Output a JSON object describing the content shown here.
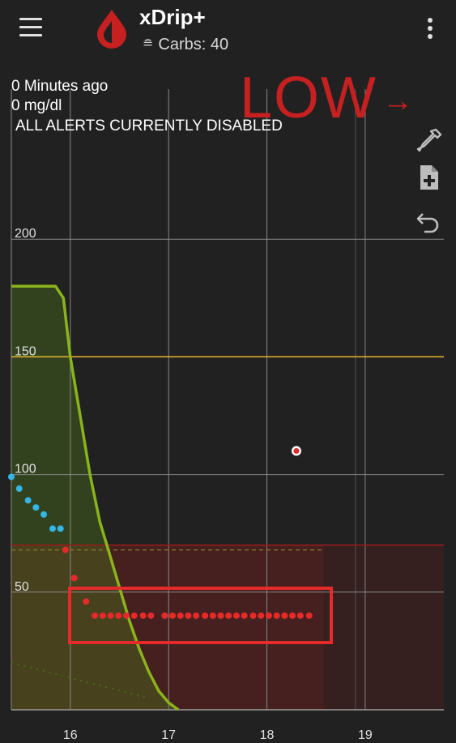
{
  "app": {
    "title": "xDrip+",
    "subtitle_icon": "scale-icon",
    "subtitle": "Carbs: 40"
  },
  "status": {
    "time_ago": "0 Minutes ago",
    "glucose": "0 mg/dl",
    "alerts": "ALL ALERTS CURRENTLY DISABLED",
    "trend_label": "LOW",
    "trend_arrow": "→"
  },
  "colors": {
    "background": "#212121",
    "low_red": "#c62020",
    "high_line": "#e8b830",
    "prediction_green": "#8ab41c",
    "reading_blue": "#33b5e5",
    "reading_red": "#e52a2a",
    "highlight_box": "#e52a2a"
  },
  "tools": [
    {
      "name": "eyedropper-icon"
    },
    {
      "name": "note-add-icon"
    },
    {
      "name": "undo-icon"
    }
  ],
  "chart_data": {
    "type": "scatter",
    "title": "",
    "xlabel": "",
    "ylabel": "",
    "x_ticks": [
      "16",
      "17",
      "18",
      "19"
    ],
    "y_ticks": [
      "50",
      "100",
      "150",
      "200"
    ],
    "xlim": [
      15.4,
      19.8
    ],
    "ylim": [
      0,
      250
    ],
    "high_threshold": 150,
    "low_threshold": 70,
    "grid": true,
    "series": [
      {
        "kind": "readings-blue",
        "points": [
          [
            15.4,
            99
          ],
          [
            15.48,
            94
          ],
          [
            15.57,
            89
          ],
          [
            15.65,
            86
          ],
          [
            15.73,
            83
          ],
          [
            15.82,
            77
          ],
          [
            15.9,
            77
          ]
        ]
      },
      {
        "kind": "readings-red",
        "points": [
          [
            15.95,
            68
          ],
          [
            16.04,
            56
          ],
          [
            16.16,
            46
          ],
          [
            16.25,
            40
          ],
          [
            16.33,
            40
          ],
          [
            16.41,
            40
          ],
          [
            16.49,
            40
          ],
          [
            16.57,
            40
          ],
          [
            16.65,
            40
          ],
          [
            16.74,
            40
          ],
          [
            16.82,
            40
          ],
          [
            16.96,
            40
          ],
          [
            17.04,
            40
          ],
          [
            17.12,
            40
          ],
          [
            17.2,
            40
          ],
          [
            17.28,
            40
          ],
          [
            17.37,
            40
          ],
          [
            17.45,
            40
          ],
          [
            17.53,
            40
          ],
          [
            17.61,
            40
          ],
          [
            17.69,
            40
          ],
          [
            17.77,
            40
          ],
          [
            17.86,
            40
          ],
          [
            17.94,
            40
          ],
          [
            18.02,
            40
          ],
          [
            18.1,
            40
          ],
          [
            18.18,
            40
          ],
          [
            18.26,
            40
          ],
          [
            18.34,
            40
          ],
          [
            18.43,
            40
          ]
        ]
      },
      {
        "kind": "prediction-curve",
        "points": [
          [
            15.4,
            180
          ],
          [
            15.85,
            180
          ],
          [
            15.93,
            175
          ],
          [
            16.0,
            150
          ],
          [
            16.1,
            125
          ],
          [
            16.2,
            100
          ],
          [
            16.3,
            80
          ],
          [
            16.4,
            66
          ],
          [
            16.5,
            52
          ],
          [
            16.6,
            38
          ],
          [
            16.7,
            26
          ],
          [
            16.8,
            16
          ],
          [
            16.9,
            8
          ],
          [
            17.0,
            3
          ],
          [
            17.1,
            0
          ]
        ]
      },
      {
        "kind": "isolated-marker",
        "points": [
          [
            18.3,
            110
          ]
        ]
      }
    ]
  }
}
